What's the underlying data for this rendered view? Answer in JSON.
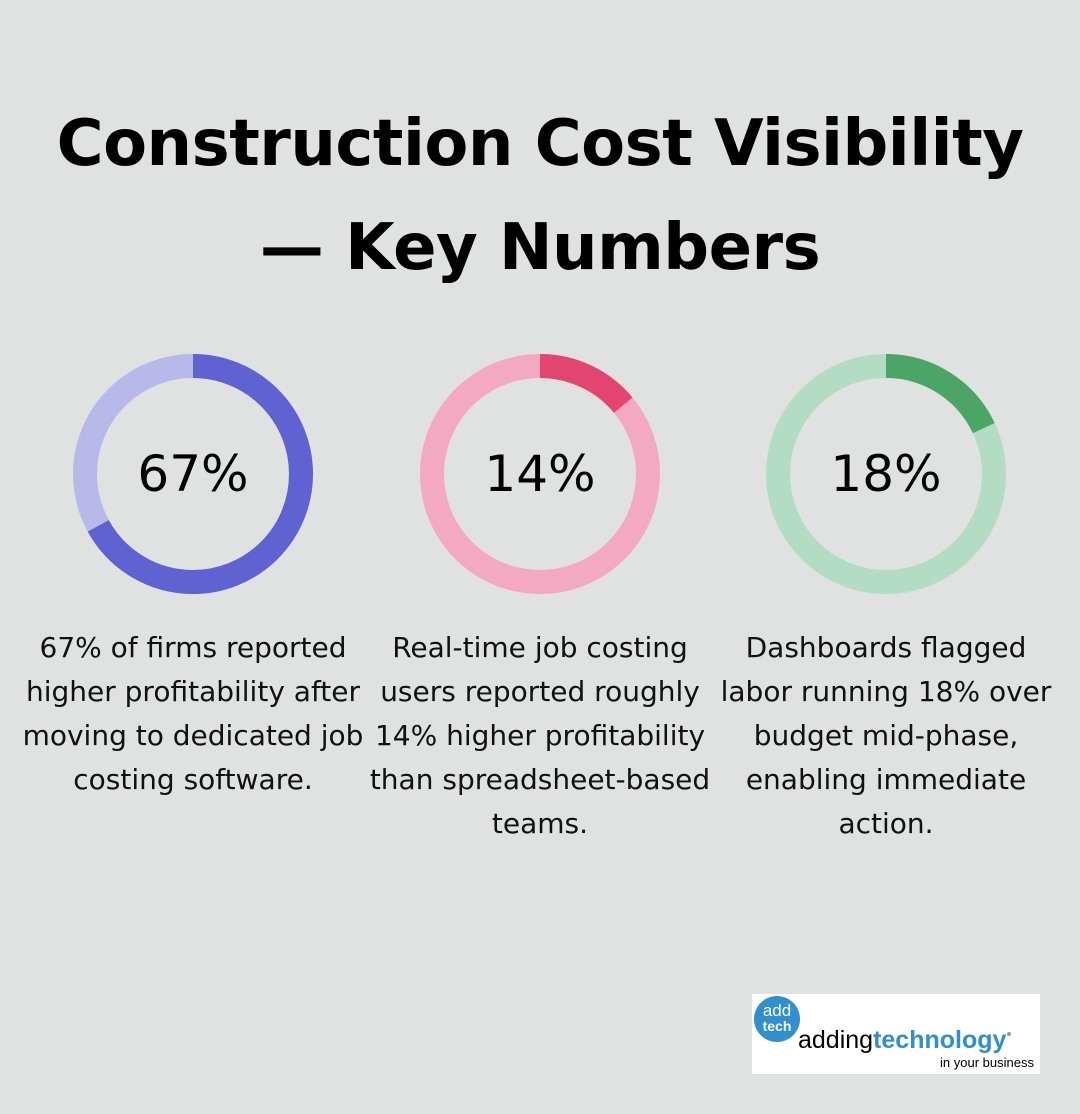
{
  "title_lines": [
    "Construction Cost Visibility",
    "— Key Numbers"
  ],
  "chart_data": [
    {
      "type": "pie",
      "value": 67,
      "display": "67%",
      "description": "67% of firms reported higher profitability after moving to dedicated job costing software.",
      "colors": {
        "track": "#b7b9e9",
        "fill": "#5f62d1"
      }
    },
    {
      "type": "pie",
      "value": 14,
      "display": "14%",
      "description": "Real-time job costing users reported roughly 14% higher profitability than spreadsheet-based teams.",
      "colors": {
        "track": "#f3a9c1",
        "fill": "#e2456f"
      }
    },
    {
      "type": "pie",
      "value": 18,
      "display": "18%",
      "description": "Dashboards flagged labor running 18% over budget mid-phase, enabling immediate action.",
      "colors": {
        "track": "#b3ddc2",
        "fill": "#4aa566"
      }
    }
  ],
  "logo": {
    "badge_top": "add",
    "badge_bottom": "tech",
    "word_plain": "adding",
    "word_bold": "technology",
    "tagline": "in your business"
  },
  "colors": {
    "background": "#e0e1e1",
    "brand_blue": "#2f8fd0"
  }
}
